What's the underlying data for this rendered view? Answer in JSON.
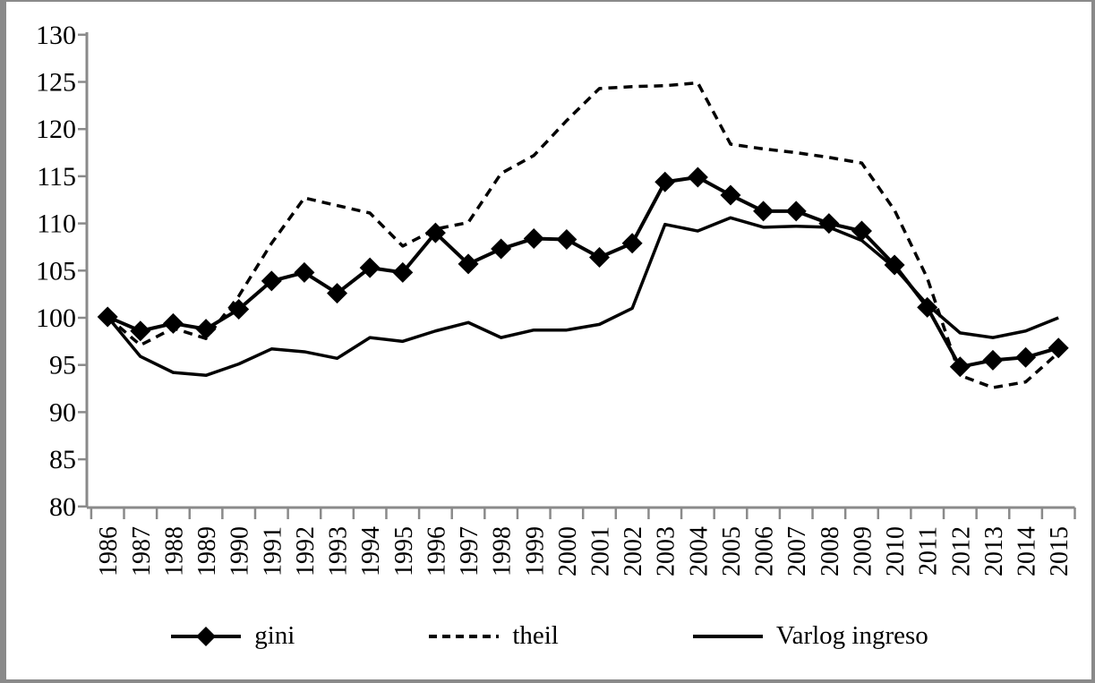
{
  "figure": {
    "background": "#ffffff",
    "border_color": "#8a8a8a",
    "axis_color": "#8a8a8a",
    "line_color": "#000000",
    "text_color": "#000000"
  },
  "chart_data": {
    "type": "line",
    "title": "",
    "xlabel": "",
    "ylabel": "",
    "ylim": [
      80,
      130
    ],
    "ytick_step": 5,
    "ytick_labels": [
      "80",
      "85",
      "90",
      "95",
      "100",
      "105",
      "110",
      "115",
      "120",
      "125",
      "130"
    ],
    "grid": false,
    "legend_position": "bottom-center",
    "x": [
      1986,
      1987,
      1988,
      1989,
      1990,
      1991,
      1992,
      1993,
      1994,
      1995,
      1996,
      1997,
      1998,
      1999,
      2000,
      2001,
      2002,
      2003,
      2004,
      2005,
      2006,
      2007,
      2008,
      2009,
      2010,
      2011,
      2012,
      2013,
      2014,
      2015
    ],
    "series": [
      {
        "name": "gini",
        "style": "solid",
        "marker": "diamond",
        "values": [
          100.1,
          98.6,
          99.4,
          98.8,
          100.9,
          103.9,
          104.8,
          102.6,
          105.3,
          104.8,
          109.0,
          105.7,
          107.3,
          108.4,
          108.3,
          106.4,
          107.9,
          114.4,
          114.9,
          113.0,
          111.3,
          111.3,
          110.0,
          109.2,
          105.6,
          101.1,
          94.8,
          95.5,
          95.8,
          96.8
        ]
      },
      {
        "name": "theil",
        "style": "dashed",
        "marker": "none",
        "values": [
          100.1,
          97.1,
          98.9,
          97.8,
          102.3,
          107.9,
          112.7,
          111.9,
          111.1,
          107.6,
          109.4,
          110.1,
          115.3,
          117.2,
          120.9,
          124.3,
          124.5,
          124.6,
          124.9,
          118.4,
          117.9,
          117.5,
          117.0,
          116.4,
          111.4,
          104.2,
          93.9,
          92.6,
          93.2,
          96.3
        ]
      },
      {
        "name": "Varlog ingreso",
        "style": "solid",
        "marker": "none",
        "values": [
          100.1,
          95.9,
          94.2,
          93.9,
          95.1,
          96.7,
          96.4,
          95.7,
          97.9,
          97.5,
          98.6,
          99.5,
          97.9,
          98.7,
          98.7,
          99.3,
          101.0,
          109.9,
          109.2,
          110.6,
          109.6,
          109.7,
          109.6,
          108.2,
          105.3,
          101.4,
          98.4,
          97.9,
          98.6,
          100.0
        ]
      }
    ]
  },
  "legend": {
    "items": [
      {
        "label": "gini"
      },
      {
        "label": "theil"
      },
      {
        "label": "Varlog ingreso"
      }
    ]
  }
}
